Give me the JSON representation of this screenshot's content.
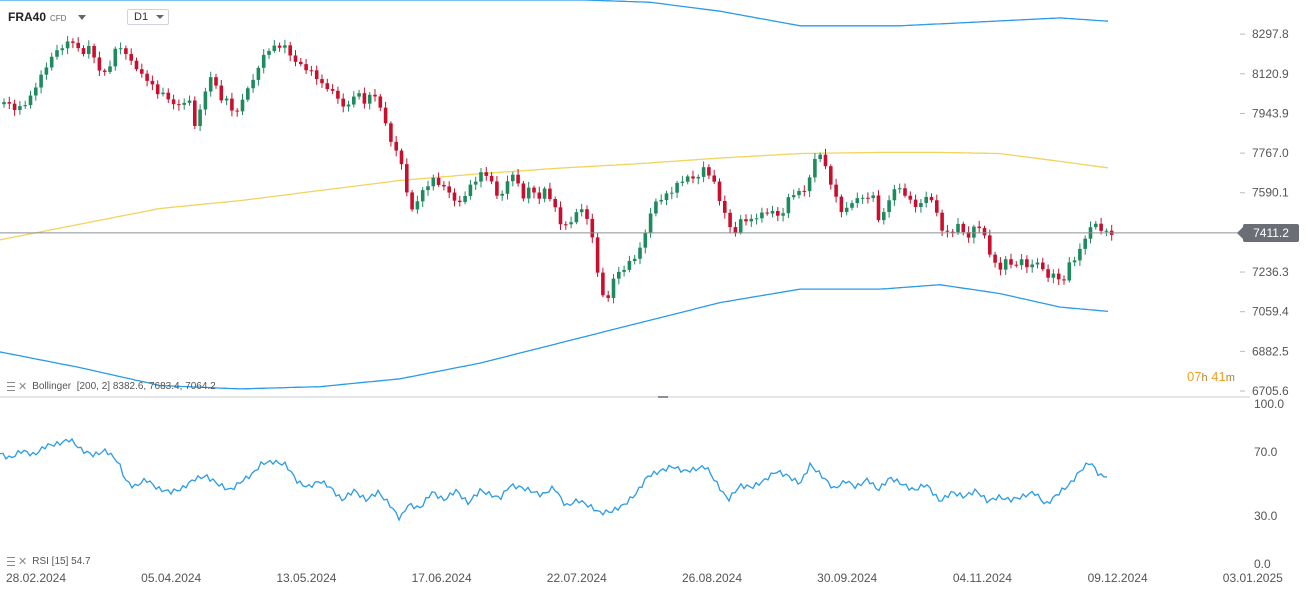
{
  "header": {
    "symbol": "FRA40",
    "symbol_type": "CFD",
    "timeframe": "D1"
  },
  "indicators": {
    "bollinger_label": "Bollinger",
    "bollinger_params": "[200,  2]",
    "bollinger_values": "8382.6,  7683.4,  7064.2",
    "rsi_label": "RSI",
    "rsi_params": "[15]",
    "rsi_value": "54.7"
  },
  "countdown": {
    "hours": "07",
    "h_unit": "h",
    "minutes": "41",
    "m_unit": "m"
  },
  "current_price": "7411.2",
  "colors": {
    "up": "#1f8a5e",
    "down": "#c8102e",
    "band": "#2a9be6",
    "middle": "#f2d35c",
    "rsi": "#2a9be6"
  },
  "chart_data": [
    {
      "type": "candlestick",
      "title": "",
      "ylim": [
        6705.6,
        8450
      ],
      "y_ticks": [
        "8297.8",
        "8120.9",
        "7943.9",
        "7767.0",
        "7590.1",
        "7411.2",
        "7236.3",
        "7059.4",
        "6882.5",
        "6705.6"
      ],
      "x_ticks": [
        "28.02.2024",
        "05.04.2024",
        "13.05.2024",
        "17.06.2024",
        "22.07.2024",
        "26.08.2024",
        "30.09.2024",
        "04.11.2024",
        "09.12.2024",
        "03.01.2025"
      ],
      "close_keys": [
        [
          0,
          7985
        ],
        [
          8,
          7995
        ],
        [
          15,
          7960
        ],
        [
          22,
          7975
        ],
        [
          30,
          8010
        ],
        [
          37,
          8080
        ],
        [
          45,
          8140
        ],
        [
          52,
          8200
        ],
        [
          60,
          8235
        ],
        [
          67,
          8255
        ],
        [
          74,
          8270
        ],
        [
          81,
          8200
        ],
        [
          90,
          8250
        ],
        [
          97,
          8150
        ],
        [
          105,
          8120
        ],
        [
          112,
          8180
        ],
        [
          118,
          8260
        ],
        [
          125,
          8210
        ],
        [
          133,
          8170
        ],
        [
          140,
          8120
        ],
        [
          148,
          8095
        ],
        [
          156,
          8040
        ],
        [
          164,
          8030
        ],
        [
          172,
          7990
        ],
        [
          180,
          7975
        ],
        [
          188,
          8020
        ],
        [
          196,
          7875
        ],
        [
          204,
          8030
        ],
        [
          212,
          8120
        ],
        [
          220,
          8010
        ],
        [
          228,
          8000
        ],
        [
          236,
          7930
        ],
        [
          244,
          8030
        ],
        [
          252,
          8080
        ],
        [
          260,
          8170
        ],
        [
          268,
          8230
        ],
        [
          276,
          8240
        ],
        [
          284,
          8250
        ],
        [
          292,
          8190
        ],
        [
          300,
          8160
        ],
        [
          308,
          8140
        ],
        [
          316,
          8110
        ],
        [
          324,
          8060
        ],
        [
          332,
          8050
        ],
        [
          340,
          7990
        ],
        [
          348,
          7970
        ],
        [
          356,
          8050
        ],
        [
          364,
          7990
        ],
        [
          372,
          8040
        ],
        [
          380,
          7980
        ],
        [
          387,
          7870
        ],
        [
          395,
          7780
        ],
        [
          402,
          7720
        ],
        [
          410,
          7500
        ],
        [
          418,
          7560
        ],
        [
          426,
          7620
        ],
        [
          434,
          7650
        ],
        [
          442,
          7620
        ],
        [
          450,
          7590
        ],
        [
          458,
          7530
        ],
        [
          466,
          7590
        ],
        [
          474,
          7640
        ],
        [
          482,
          7680
        ],
        [
          490,
          7660
        ],
        [
          498,
          7560
        ],
        [
          506,
          7620
        ],
        [
          514,
          7690
        ],
        [
          522,
          7560
        ],
        [
          530,
          7620
        ],
        [
          538,
          7560
        ],
        [
          546,
          7610
        ],
        [
          554,
          7530
        ],
        [
          562,
          7440
        ],
        [
          570,
          7450
        ],
        [
          578,
          7520
        ],
        [
          586,
          7500
        ],
        [
          594,
          7350
        ],
        [
          600,
          7170
        ],
        [
          606,
          7080
        ],
        [
          612,
          7200
        ],
        [
          618,
          7230
        ],
        [
          626,
          7260
        ],
        [
          634,
          7300
        ],
        [
          642,
          7350
        ],
        [
          648,
          7470
        ],
        [
          656,
          7550
        ],
        [
          664,
          7570
        ],
        [
          672,
          7600
        ],
        [
          680,
          7640
        ],
        [
          688,
          7660
        ],
        [
          696,
          7650
        ],
        [
          704,
          7700
        ],
        [
          712,
          7660
        ],
        [
          718,
          7580
        ],
        [
          726,
          7480
        ],
        [
          734,
          7400
        ],
        [
          742,
          7480
        ],
        [
          750,
          7460
        ],
        [
          758,
          7490
        ],
        [
          766,
          7500
        ],
        [
          774,
          7510
        ],
        [
          780,
          7470
        ],
        [
          788,
          7560
        ],
        [
          796,
          7600
        ],
        [
          802,
          7580
        ],
        [
          810,
          7660
        ],
        [
          818,
          7790
        ],
        [
          824,
          7720
        ],
        [
          832,
          7620
        ],
        [
          840,
          7510
        ],
        [
          848,
          7520
        ],
        [
          856,
          7570
        ],
        [
          864,
          7560
        ],
        [
          872,
          7590
        ],
        [
          880,
          7450
        ],
        [
          888,
          7550
        ],
        [
          896,
          7620
        ],
        [
          904,
          7590
        ],
        [
          912,
          7540
        ],
        [
          920,
          7530
        ],
        [
          928,
          7590
        ],
        [
          936,
          7510
        ],
        [
          944,
          7400
        ],
        [
          952,
          7420
        ],
        [
          960,
          7450
        ],
        [
          968,
          7380
        ],
        [
          976,
          7460
        ],
        [
          984,
          7400
        ],
        [
          990,
          7320
        ],
        [
          998,
          7240
        ],
        [
          1006,
          7290
        ],
        [
          1014,
          7260
        ],
        [
          1022,
          7290
        ],
        [
          1030,
          7250
        ],
        [
          1038,
          7290
        ],
        [
          1046,
          7210
        ],
        [
          1054,
          7230
        ],
        [
          1062,
          7180
        ],
        [
          1070,
          7280
        ],
        [
          1078,
          7310
        ],
        [
          1086,
          7400
        ],
        [
          1094,
          7460
        ],
        [
          1102,
          7420
        ],
        [
          1108,
          7411
        ]
      ],
      "upper_band_keys": [
        [
          0,
          8450
        ],
        [
          100,
          8450
        ],
        [
          240,
          8450
        ],
        [
          325,
          8450
        ],
        [
          395,
          8450
        ],
        [
          495,
          8450
        ],
        [
          585,
          8450
        ],
        [
          650,
          8440
        ],
        [
          720,
          8400
        ],
        [
          800,
          8335
        ],
        [
          900,
          8335
        ],
        [
          970,
          8350
        ],
        [
          1060,
          8370
        ],
        [
          1110,
          8355
        ]
      ],
      "middle_band_keys": [
        [
          0,
          7380
        ],
        [
          80,
          7450
        ],
        [
          160,
          7520
        ],
        [
          240,
          7555
        ],
        [
          320,
          7600
        ],
        [
          400,
          7645
        ],
        [
          480,
          7675
        ],
        [
          560,
          7700
        ],
        [
          640,
          7720
        ],
        [
          720,
          7745
        ],
        [
          800,
          7765
        ],
        [
          880,
          7770
        ],
        [
          940,
          7770
        ],
        [
          1000,
          7765
        ],
        [
          1060,
          7730
        ],
        [
          1110,
          7700
        ]
      ],
      "lower_band_keys": [
        [
          0,
          6880
        ],
        [
          80,
          6810
        ],
        [
          160,
          6730
        ],
        [
          240,
          6715
        ],
        [
          320,
          6725
        ],
        [
          400,
          6760
        ],
        [
          480,
          6830
        ],
        [
          560,
          6920
        ],
        [
          640,
          7010
        ],
        [
          720,
          7100
        ],
        [
          800,
          7160
        ],
        [
          880,
          7160
        ],
        [
          940,
          7180
        ],
        [
          1000,
          7140
        ],
        [
          1060,
          7080
        ],
        [
          1110,
          7060
        ]
      ]
    },
    {
      "type": "line",
      "title": "RSI",
      "ylim": [
        0,
        100
      ],
      "y_ticks": [
        "100.0",
        "70.0",
        "30.0",
        "0.0"
      ],
      "values_keys": [
        [
          0,
          69
        ],
        [
          10,
          66
        ],
        [
          22,
          71
        ],
        [
          34,
          68
        ],
        [
          46,
          74
        ],
        [
          58,
          75
        ],
        [
          70,
          78
        ],
        [
          82,
          71
        ],
        [
          94,
          68
        ],
        [
          106,
          71
        ],
        [
          118,
          64
        ],
        [
          126,
          52
        ],
        [
          134,
          48
        ],
        [
          146,
          53
        ],
        [
          158,
          47
        ],
        [
          170,
          45
        ],
        [
          182,
          47
        ],
        [
          194,
          53
        ],
        [
          206,
          55
        ],
        [
          218,
          50
        ],
        [
          230,
          46
        ],
        [
          242,
          52
        ],
        [
          252,
          56
        ],
        [
          262,
          63
        ],
        [
          274,
          64
        ],
        [
          286,
          62
        ],
        [
          298,
          51
        ],
        [
          308,
          48
        ],
        [
          320,
          52
        ],
        [
          330,
          48
        ],
        [
          342,
          40
        ],
        [
          354,
          46
        ],
        [
          366,
          40
        ],
        [
          378,
          45
        ],
        [
          390,
          37
        ],
        [
          400,
          28
        ],
        [
          408,
          37
        ],
        [
          420,
          35
        ],
        [
          432,
          45
        ],
        [
          444,
          40
        ],
        [
          456,
          46
        ],
        [
          468,
          38
        ],
        [
          480,
          46
        ],
        [
          492,
          43
        ],
        [
          500,
          41
        ],
        [
          510,
          49
        ],
        [
          520,
          48
        ],
        [
          530,
          46
        ],
        [
          542,
          43
        ],
        [
          554,
          48
        ],
        [
          566,
          36
        ],
        [
          578,
          40
        ],
        [
          590,
          36
        ],
        [
          600,
          32
        ],
        [
          612,
          33
        ],
        [
          624,
          37
        ],
        [
          636,
          44
        ],
        [
          648,
          55
        ],
        [
          660,
          58
        ],
        [
          672,
          61
        ],
        [
          684,
          58
        ],
        [
          694,
          59
        ],
        [
          706,
          61
        ],
        [
          716,
          51
        ],
        [
          728,
          40
        ],
        [
          740,
          49
        ],
        [
          752,
          48
        ],
        [
          764,
          52
        ],
        [
          776,
          58
        ],
        [
          788,
          55
        ],
        [
          800,
          50
        ],
        [
          810,
          62
        ],
        [
          822,
          55
        ],
        [
          834,
          47
        ],
        [
          846,
          52
        ],
        [
          856,
          48
        ],
        [
          868,
          53
        ],
        [
          878,
          46
        ],
        [
          890,
          54
        ],
        [
          902,
          50
        ],
        [
          914,
          46
        ],
        [
          926,
          50
        ],
        [
          940,
          39
        ],
        [
          952,
          45
        ],
        [
          964,
          42
        ],
        [
          976,
          46
        ],
        [
          988,
          39
        ],
        [
          998,
          42
        ],
        [
          1010,
          40
        ],
        [
          1022,
          42
        ],
        [
          1034,
          45
        ],
        [
          1046,
          37
        ],
        [
          1058,
          44
        ],
        [
          1070,
          50
        ],
        [
          1080,
          58
        ],
        [
          1090,
          64
        ],
        [
          1100,
          55
        ],
        [
          1108,
          55
        ]
      ]
    }
  ]
}
